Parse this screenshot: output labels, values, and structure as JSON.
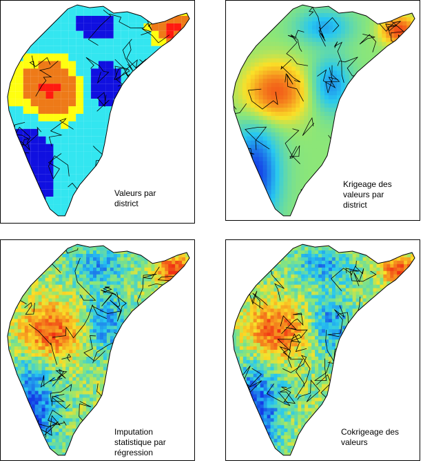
{
  "panels": [
    {
      "caption": "Valeurs par\ndistrict",
      "style": "choropleth"
    },
    {
      "caption": "Krigeage des\nvaleurs par\ndistrict",
      "style": "smooth"
    },
    {
      "caption": "Imputation\nstatistique par\nrégression",
      "style": "noisy"
    },
    {
      "caption": "Cokrigeage des\nvaleurs",
      "style": "noisy"
    }
  ],
  "colors": {
    "blue": "#1010e0",
    "cyan": "#33e6f0",
    "yellow": "#ffff10",
    "orange": "#ee7a18",
    "red": "#ff1a10",
    "border": "#000000"
  }
}
